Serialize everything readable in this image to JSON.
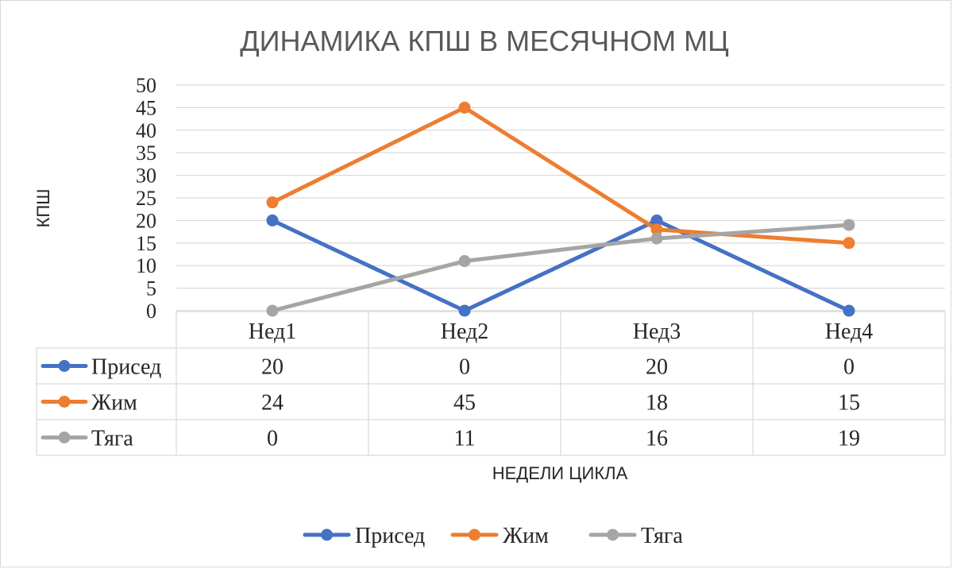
{
  "chart_data": {
    "type": "line",
    "title": "ДИНАМИКА КПШ В МЕСЯЧНОМ МЦ",
    "xlabel": "НЕДЕЛИ ЦИКЛА",
    "ylabel": "КПШ",
    "categories": [
      "Нед1",
      "Нед2",
      "Нед3",
      "Нед4"
    ],
    "ylim": [
      0,
      50
    ],
    "yticks": [
      0,
      5,
      10,
      15,
      20,
      25,
      30,
      35,
      40,
      45,
      50
    ],
    "grid": true,
    "legend_position": "bottom",
    "data_table": true,
    "series": [
      {
        "name": "Присед",
        "values": [
          20,
          0,
          20,
          0
        ],
        "color": "#4472c4"
      },
      {
        "name": "Жим",
        "values": [
          24,
          45,
          18,
          15
        ],
        "color": "#ed7d31"
      },
      {
        "name": "Тяга",
        "values": [
          0,
          11,
          16,
          19
        ],
        "color": "#a5a5a5"
      }
    ]
  }
}
